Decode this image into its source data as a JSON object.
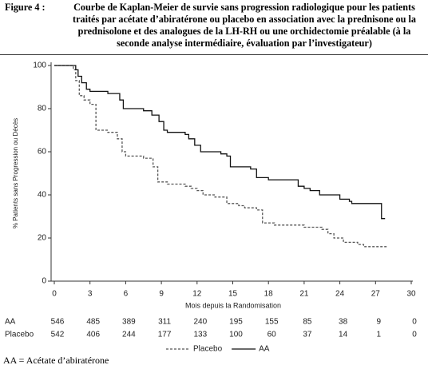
{
  "caption": {
    "label": "Figure 4 :",
    "text": "Courbe de Kaplan-Meier de survie sans progression radiologique pour les patients traités par acétate d’abiratérone ou placebo en association avec la prednisone ou la prednisolone et des analogues de la LH-RH ou une orchidectomie préalable (à la seconde analyse intermédiaire, évaluation par l’investigateur)"
  },
  "chart_data": {
    "type": "step",
    "xlabel": "Mois depuis la Randomisation",
    "ylabel": "% Patients sans Progression ou Décès",
    "xlim": [
      0,
      30
    ],
    "ylim": [
      0,
      100
    ],
    "xticks": [
      0,
      3,
      6,
      9,
      12,
      15,
      18,
      21,
      24,
      27,
      30
    ],
    "yticks": [
      0,
      20,
      40,
      60,
      80,
      100
    ],
    "series": [
      {
        "name": "Placebo",
        "color": "#555555",
        "line_style": "dashed",
        "x": [
          0,
          1.6,
          1.8,
          2.1,
          2.5,
          3.0,
          3.5,
          4.5,
          5.3,
          5.7,
          6.0,
          7.5,
          8.3,
          8.7,
          9.5,
          11.0,
          11.5,
          12.0,
          12.5,
          13.5,
          14.5,
          15.5,
          16.0,
          17.0,
          17.5,
          18.5,
          21.0,
          22.5,
          23.0,
          23.5,
          24.3,
          25.5,
          26.0,
          28.0
        ],
        "values": [
          100,
          98,
          93,
          86,
          84,
          82,
          70,
          69,
          66,
          60,
          58,
          57,
          53,
          46,
          45,
          44,
          43,
          42,
          40,
          39,
          36,
          35,
          34,
          33,
          27,
          26,
          25,
          24,
          22,
          20,
          18,
          17,
          16,
          16
        ]
      },
      {
        "name": "AA",
        "color": "#111111",
        "line_style": "solid",
        "x": [
          0,
          1.8,
          2.0,
          2.3,
          2.7,
          3.0,
          4.5,
          5.5,
          5.8,
          7.5,
          8.2,
          8.8,
          9.2,
          9.5,
          11.0,
          11.3,
          11.8,
          12.3,
          14.0,
          14.5,
          14.8,
          16.5,
          17.0,
          18.0,
          20.5,
          21.0,
          21.5,
          22.3,
          24.0,
          24.8,
          25.0,
          27.5,
          27.8
        ],
        "values": [
          100,
          98,
          95,
          92,
          89,
          88,
          87,
          84,
          80,
          79,
          77,
          74,
          70,
          69,
          68,
          66,
          63,
          60,
          59,
          58,
          53,
          52,
          48,
          47,
          44,
          43,
          42,
          40,
          38,
          37,
          36,
          29,
          29
        ]
      }
    ]
  },
  "risk_table": {
    "rows": [
      {
        "name": "AA",
        "values": [
          546,
          485,
          389,
          311,
          240,
          195,
          155,
          85,
          38,
          9,
          0
        ]
      },
      {
        "name": "Placebo",
        "values": [
          542,
          406,
          244,
          177,
          133,
          100,
          60,
          37,
          14,
          1,
          0
        ]
      }
    ]
  },
  "footnote": "AA = Acétate d’abiratérone"
}
